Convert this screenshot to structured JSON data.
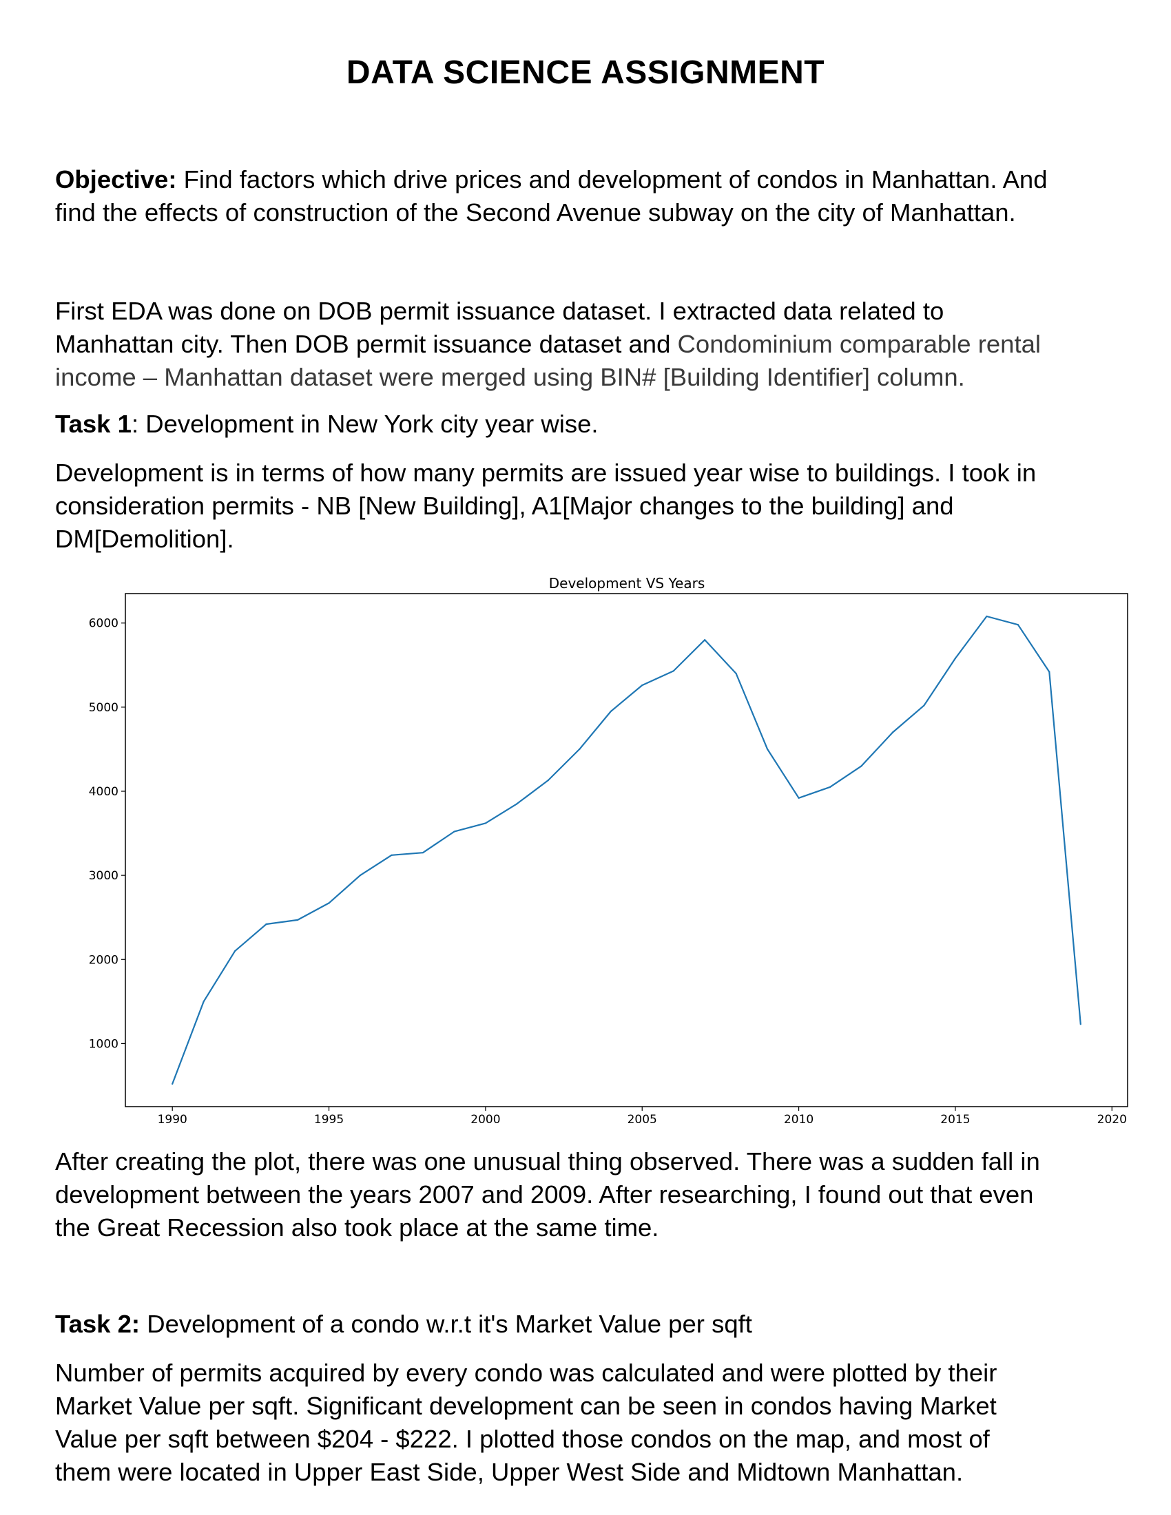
{
  "title": "DATA SCIENCE ASSIGNMENT",
  "objective": {
    "label": "Objective:",
    "line1": "Find factors which drive prices and development of condos in Manhattan. And",
    "line2": "find the effects of construction of the Second Avenue subway on the city of Manhattan."
  },
  "intro": {
    "line1": "First EDA was done on DOB permit issuance dataset. I extracted data related to",
    "line2_a": "Manhattan city. Then DOB permit issuance dataset and ",
    "line2_b": "Condominium comparable rental",
    "line3": "income – Manhattan dataset were merged using BIN# [Building Identifier] column."
  },
  "task1": {
    "label": "Task 1",
    "text": ": Development in New York city year wise.",
    "desc_line1": "Development is in terms of how many permits are issued year wise to buildings. I took in",
    "desc_line2": "consideration permits - NB [New Building], A1[Major changes to the building] and",
    "desc_line3": "DM[Demolition]."
  },
  "observation": {
    "line1": "After creating the plot, there was one unusual thing observed. There was a sudden fall in",
    "line2": "development between the years 2007 and 2009. After researching, I found out that even",
    "line3": "the Great Recession also took place at the same time."
  },
  "task2": {
    "label": "Task 2:",
    "text": " Development of a condo w.r.t it's Market Value per sqft",
    "desc_line1": "Number of permits acquired by every condo was calculated and were plotted by their",
    "desc_line2": "Market Value per sqft. Significant development can be seen in condos having Market",
    "desc_line3": "Value per sqft between $204 - $222. I plotted those condos on the map, and most of",
    "desc_line4": "them were located in Upper East Side, Upper West Side and Midtown Manhattan."
  },
  "chart_data": {
    "type": "line",
    "title": "Development VS  Years",
    "xlabel": "",
    "ylabel": "",
    "xlim": [
      1988.5,
      2020.5
    ],
    "ylim": [
      250,
      6350
    ],
    "xticks": [
      1990,
      1995,
      2000,
      2005,
      2010,
      2015,
      2020
    ],
    "yticks": [
      1000,
      2000,
      3000,
      4000,
      5000,
      6000
    ],
    "grid": false,
    "line_color": "#1f77b4",
    "x": [
      1990,
      1991,
      1992,
      1993,
      1994,
      1995,
      1996,
      1997,
      1998,
      1999,
      2000,
      2001,
      2002,
      2003,
      2004,
      2005,
      2006,
      2007,
      2008,
      2009,
      2010,
      2011,
      2012,
      2013,
      2014,
      2015,
      2016,
      2017,
      2018,
      2019
    ],
    "y": [
      520,
      1500,
      2100,
      2420,
      2470,
      2670,
      3000,
      3240,
      3270,
      3520,
      3620,
      3850,
      4130,
      4500,
      4950,
      5260,
      5430,
      5800,
      5400,
      4500,
      3920,
      4050,
      4300,
      4700,
      5020,
      5580,
      6080,
      5980,
      5420,
      1230
    ]
  }
}
